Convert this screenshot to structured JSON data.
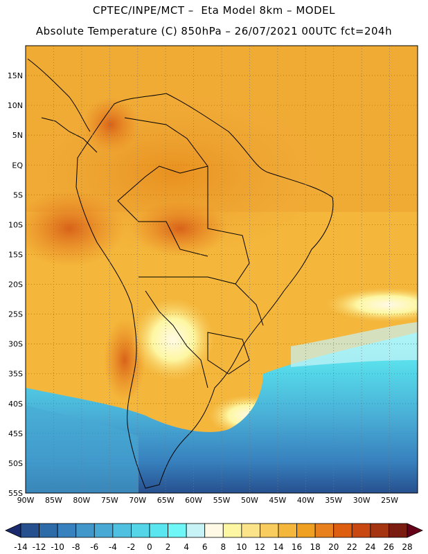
{
  "title": {
    "line1": "CPTEC/INPE/MCT –  Eta Model 8km – MODEL",
    "line2": "Absolute Temperature (C) 850hPa – 26/07/2021 00UTC fct=204h"
  },
  "map": {
    "lon_range": [
      -90,
      -20
    ],
    "lat_range": [
      -55,
      20
    ],
    "lat_labels": [
      "15N",
      "10N",
      "5N",
      "EQ",
      "5S",
      "10S",
      "15S",
      "20S",
      "25S",
      "30S",
      "35S",
      "40S",
      "45S",
      "50S",
      "55S"
    ],
    "lat_values": [
      15,
      10,
      5,
      0,
      -5,
      -10,
      -15,
      -20,
      -25,
      -30,
      -35,
      -40,
      -45,
      -50,
      -55
    ],
    "lon_labels": [
      "90W",
      "85W",
      "80W",
      "75W",
      "70W",
      "65W",
      "60W",
      "55W",
      "50W",
      "45W",
      "40W",
      "35W",
      "30W",
      "25W"
    ],
    "lon_values": [
      -90,
      -85,
      -80,
      -75,
      -70,
      -65,
      -60,
      -55,
      -50,
      -45,
      -40,
      -35,
      -30,
      -25
    ]
  },
  "colorbar": {
    "levels": [
      "-14",
      "-12",
      "-10",
      "-8",
      "-6",
      "-4",
      "-2",
      "0",
      "2",
      "4",
      "6",
      "8",
      "10",
      "12",
      "14",
      "16",
      "18",
      "20",
      "22",
      "24",
      "26",
      "28"
    ],
    "colors": [
      "#1a2a6c",
      "#27508f",
      "#2c6aa8",
      "#3781be",
      "#4197c9",
      "#48aad4",
      "#4fc0df",
      "#54d6e8",
      "#5ae6f0",
      "#6ff6f6",
      "#c8f3f6",
      "#fff9e6",
      "#fdf7a3",
      "#fbe38a",
      "#f8cc5f",
      "#f4b63b",
      "#f0a020",
      "#e8801d",
      "#de5e10",
      "#c94710",
      "#a43510",
      "#7a1d10",
      "#650018"
    ]
  }
}
